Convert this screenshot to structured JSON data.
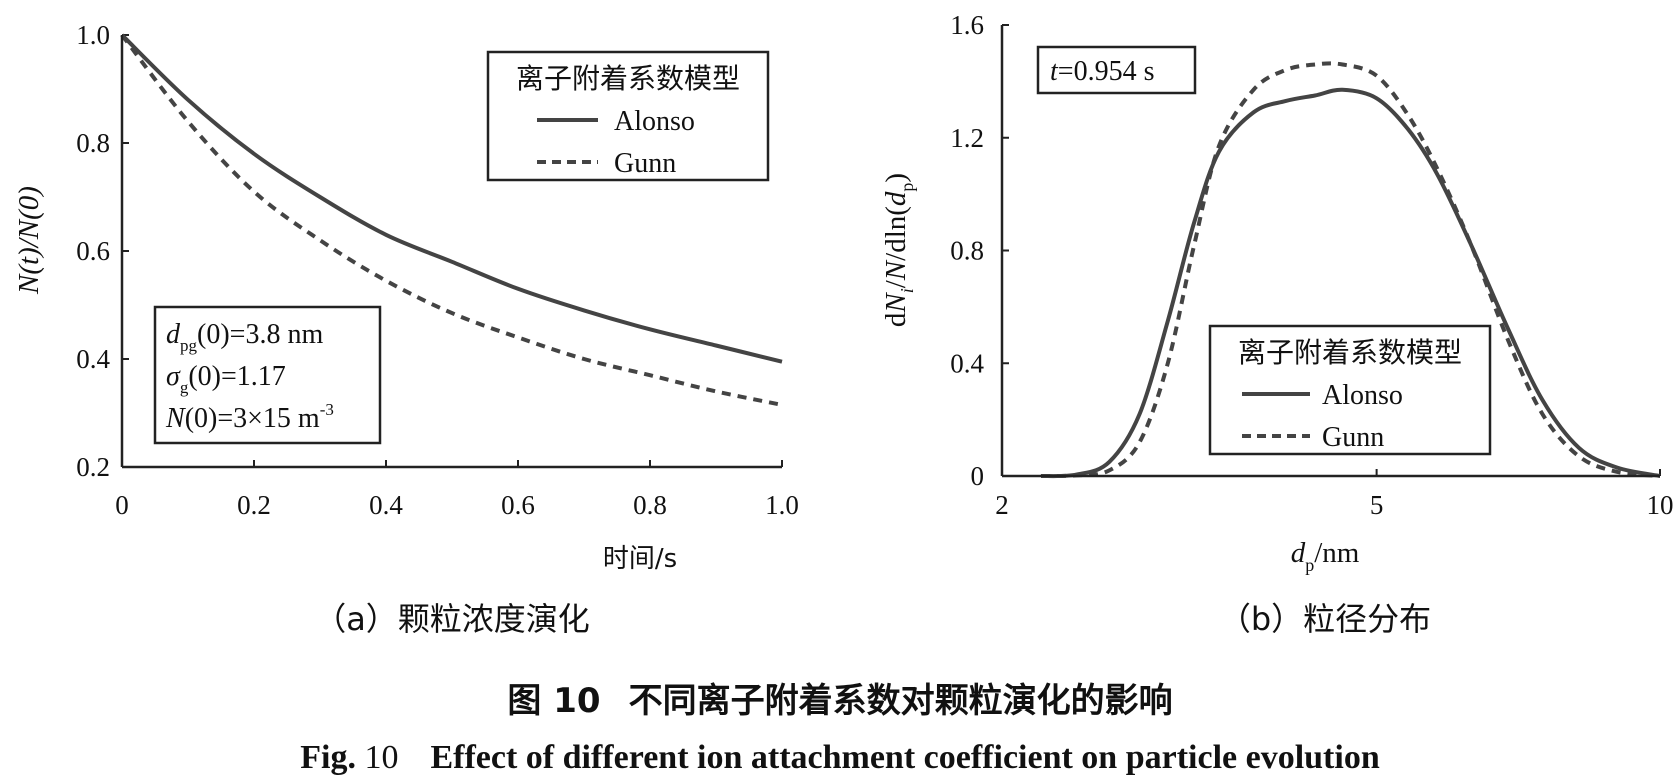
{
  "chart_data": [
    {
      "type": "line",
      "caption": "（a）颗粒浓度演化",
      "xlabel": "时间/s",
      "ylabel": "N(t)/N(0)",
      "xlim": [
        0,
        1.0
      ],
      "ylim": [
        0.2,
        1.0
      ],
      "xticks": [
        "0",
        "0.2",
        "0.4",
        "0.6",
        "0.8",
        "1.0"
      ],
      "yticks": [
        "0.2",
        "0.4",
        "0.6",
        "0.8",
        "1.0"
      ],
      "legend_title": "离子附着系数模型",
      "legend_position": "top-right",
      "annotation": {
        "line1": "dpg(0)=3.8 nm",
        "line2": "σg(0)=1.17",
        "line3": "N(0)=3×15 m-3"
      },
      "series": [
        {
          "name": "Alonso",
          "style": "solid",
          "x": [
            0,
            0.1,
            0.2,
            0.3,
            0.4,
            0.5,
            0.6,
            0.7,
            0.8,
            0.9,
            1.0
          ],
          "y": [
            1.0,
            0.88,
            0.78,
            0.7,
            0.63,
            0.58,
            0.53,
            0.49,
            0.455,
            0.425,
            0.395
          ]
        },
        {
          "name": "Gunn",
          "style": "dashed",
          "x": [
            0,
            0.1,
            0.2,
            0.3,
            0.4,
            0.5,
            0.6,
            0.7,
            0.8,
            0.9,
            1.0
          ],
          "y": [
            1.0,
            0.84,
            0.71,
            0.62,
            0.545,
            0.485,
            0.44,
            0.4,
            0.37,
            0.34,
            0.315
          ]
        }
      ]
    },
    {
      "type": "line",
      "caption": "（b）粒径分布",
      "xlabel": "dp/nm",
      "ylabel": "dNi/N/dln(dp)",
      "xscale": "log",
      "xlim": [
        2,
        10
      ],
      "ylim": [
        0,
        1.6
      ],
      "xticks": [
        "2",
        "5",
        "10"
      ],
      "yticks": [
        "0",
        "0.4",
        "0.8",
        "1.2",
        "1.6"
      ],
      "legend_title": "离子附着系数模型",
      "legend_position": "bottom-right",
      "annotation": {
        "line1": "t=0.954 s"
      },
      "series": [
        {
          "name": "Alonso",
          "style": "solid",
          "x": [
            2.2,
            2.4,
            2.6,
            2.8,
            3.0,
            3.2,
            3.4,
            3.7,
            4.0,
            4.3,
            4.6,
            5.0,
            5.4,
            5.8,
            6.3,
            6.9,
            7.5,
            8.2,
            9.0,
            10.0
          ],
          "y": [
            0,
            0.005,
            0.05,
            0.22,
            0.55,
            0.9,
            1.15,
            1.29,
            1.33,
            1.35,
            1.37,
            1.34,
            1.23,
            1.07,
            0.82,
            0.52,
            0.27,
            0.1,
            0.03,
            0.0
          ]
        },
        {
          "name": "Gunn",
          "style": "dashed",
          "x": [
            2.2,
            2.4,
            2.6,
            2.8,
            3.0,
            3.2,
            3.4,
            3.7,
            4.0,
            4.3,
            4.6,
            5.0,
            5.4,
            5.8,
            6.3,
            6.9,
            7.5,
            8.2,
            9.0,
            10.0
          ],
          "y": [
            0,
            0.002,
            0.02,
            0.12,
            0.4,
            0.82,
            1.17,
            1.37,
            1.44,
            1.46,
            1.46,
            1.42,
            1.28,
            1.09,
            0.82,
            0.48,
            0.22,
            0.07,
            0.015,
            0.0
          ]
        }
      ]
    }
  ],
  "figure": {
    "title_cn_label": "图 10",
    "title_cn": "不同离子附着系数对颗粒演化的影响",
    "title_en_label": "Fig. 10",
    "title_en_num": "10",
    "title_en": "Effect of different ion attachment coefficient on particle evolution"
  }
}
